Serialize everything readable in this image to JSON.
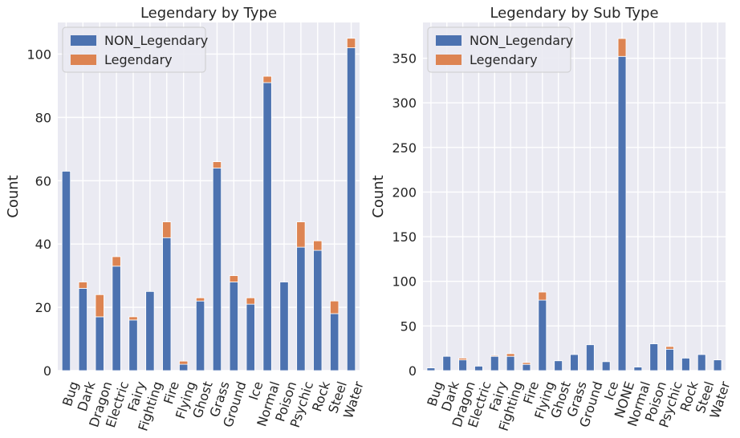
{
  "colors": {
    "non_legendary": "#4c72b0",
    "legendary": "#dd8452",
    "axes_bg": "#eaeaf2",
    "grid": "#ffffff"
  },
  "chart_data": [
    {
      "type": "bar",
      "stacked": true,
      "title": "Legendary by Type",
      "ylabel": "Count",
      "ylim": [
        0,
        110
      ],
      "yticks": [
        0,
        20,
        40,
        60,
        80,
        100
      ],
      "grid": true,
      "legend": "top-left",
      "categories": [
        "Bug",
        "Dark",
        "Dragon",
        "Electric",
        "Fairy",
        "Fighting",
        "Fire",
        "Flying",
        "Ghost",
        "Grass",
        "Ground",
        "Ice",
        "Normal",
        "Poison",
        "Psychic",
        "Rock",
        "Steel",
        "Water"
      ],
      "series": [
        {
          "name": "NON_Legendary",
          "values": [
            63,
            26,
            17,
            33,
            16,
            25,
            42,
            2,
            22,
            64,
            28,
            21,
            91,
            28,
            39,
            38,
            18,
            102
          ]
        },
        {
          "name": "Legendary",
          "values": [
            0,
            2,
            7,
            3,
            1,
            0,
            5,
            1,
            1,
            2,
            2,
            2,
            2,
            0,
            8,
            3,
            4,
            3
          ]
        }
      ]
    },
    {
      "type": "bar",
      "stacked": true,
      "title": "Legendary by Sub Type",
      "ylabel": "Count",
      "ylim": [
        0,
        390
      ],
      "yticks": [
        0,
        50,
        100,
        150,
        200,
        250,
        300,
        350
      ],
      "grid": true,
      "legend": "top-left",
      "categories": [
        "Bug",
        "Dark",
        "Dragon",
        "Electric",
        "Fairy",
        "Fighting",
        "Fire",
        "Flying",
        "Ghost",
        "Grass",
        "Ground",
        "Ice",
        "NONE",
        "Normal",
        "Poison",
        "Psychic",
        "Rock",
        "Steel",
        "Water"
      ],
      "series": [
        {
          "name": "NON_Legendary",
          "values": [
            3,
            16,
            12,
            5,
            16,
            16,
            7,
            79,
            11,
            18,
            29,
            10,
            352,
            4,
            30,
            24,
            14,
            18,
            12
          ]
        },
        {
          "name": "Legendary",
          "values": [
            0,
            0,
            2,
            0,
            1,
            3,
            2,
            9,
            0,
            0,
            0,
            0,
            20,
            0,
            0,
            3,
            0,
            0,
            0
          ]
        }
      ]
    }
  ]
}
